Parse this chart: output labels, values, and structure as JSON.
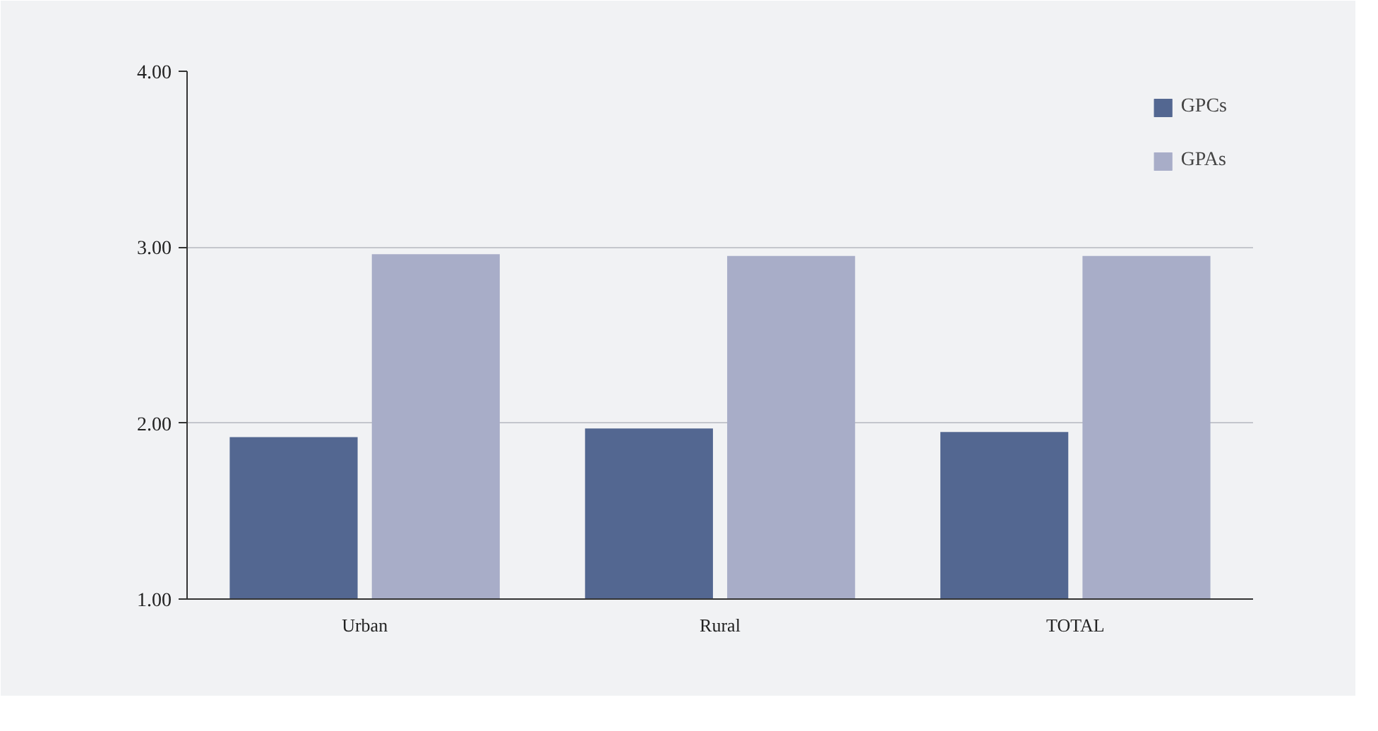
{
  "chart_data": {
    "type": "bar",
    "categories": [
      "Urban",
      "Rural",
      "TOTAL"
    ],
    "series": [
      {
        "name": "GPCs",
        "color": "#536791",
        "values": [
          1.92,
          1.97,
          1.95
        ]
      },
      {
        "name": "GPAs",
        "color": "#a8adc8",
        "values": [
          2.96,
          2.95,
          2.95
        ]
      }
    ],
    "ylim": [
      1,
      4
    ],
    "yticks": [
      {
        "value": 1,
        "label": "1.00"
      },
      {
        "value": 2,
        "label": "2.00"
      },
      {
        "value": 3,
        "label": "3.00"
      },
      {
        "value": 4,
        "label": "4.00"
      }
    ],
    "grid": "y",
    "legend": "top right"
  }
}
